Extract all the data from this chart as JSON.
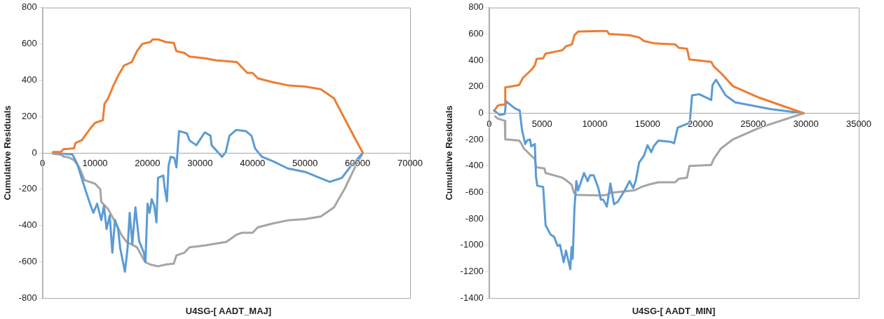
{
  "chart_data": [
    {
      "type": "line",
      "xlabel": "U4SG-[ AADT_MAJ]",
      "ylabel": "Cumulative Residuals",
      "xlim": [
        0,
        70000
      ],
      "ylim": [
        -800,
        800
      ],
      "xticks": [
        0,
        10000,
        20000,
        30000,
        40000,
        50000,
        60000,
        70000
      ],
      "yticks": [
        -800,
        -600,
        -400,
        -200,
        0,
        200,
        400,
        600,
        800
      ],
      "grid": false,
      "marker": "none",
      "series": [
        {
          "color": "#ed7d31",
          "x": [
            2000,
            3500,
            4000,
            5000,
            6000,
            6300,
            7500,
            9000,
            10000,
            11500,
            11800,
            12500,
            13500,
            14500,
            15500,
            17000,
            18000,
            19000,
            20500,
            21000,
            22000,
            23500,
            25000,
            25500,
            27000,
            28000,
            31000,
            33000,
            37000,
            38000,
            39000,
            40000,
            41000,
            44000,
            46700,
            50000,
            53000,
            55500,
            57500,
            59500,
            61000
          ],
          "values": [
            5,
            5,
            20,
            22,
            25,
            55,
            70,
            130,
            165,
            180,
            270,
            300,
            370,
            430,
            480,
            500,
            560,
            600,
            610,
            625,
            625,
            610,
            605,
            560,
            550,
            530,
            520,
            510,
            500,
            470,
            440,
            440,
            410,
            388,
            372,
            365,
            350,
            300,
            190,
            80,
            0
          ]
        },
        {
          "color": "#5b9bd5",
          "x": [
            2000,
            5700,
            6600,
            8300,
            9200,
            9700,
            10400,
            11200,
            11700,
            12200,
            12800,
            13300,
            13800,
            14400,
            14800,
            15700,
            16200,
            16600,
            17100,
            17700,
            18400,
            19300,
            19600,
            20000,
            20400,
            20800,
            21300,
            21700,
            22000,
            23000,
            23300,
            23700,
            24000,
            24400,
            25100,
            25500,
            26000,
            27500,
            28000,
            29300,
            30900,
            32000,
            32200,
            34200,
            34900,
            35600,
            36900,
            38700,
            39800,
            40500,
            41800,
            44000,
            46700,
            50000,
            54700,
            57000,
            58700,
            61000
          ],
          "values": [
            0,
            -9,
            -60,
            -215,
            -293,
            -330,
            -280,
            -370,
            -293,
            -420,
            -345,
            -550,
            -370,
            -420,
            -525,
            -655,
            -525,
            -330,
            -500,
            -300,
            -486,
            -550,
            -600,
            -280,
            -330,
            -255,
            -293,
            -383,
            -138,
            -125,
            -200,
            -267,
            -73,
            -22,
            -28,
            -80,
            120,
            107,
            68,
            42,
            113,
            94,
            42,
            -22,
            4,
            94,
            126,
            120,
            94,
            23,
            -22,
            -48,
            -86,
            -105,
            -160,
            -138,
            -74,
            0
          ]
        },
        {
          "color": "#a5a5a5",
          "x": [
            2000,
            3500,
            4000,
            5000,
            6000,
            7000,
            8000,
            10000,
            11000,
            11200,
            12500,
            14000,
            15000,
            16000,
            18000,
            19500,
            20500,
            22000,
            23500,
            25000,
            25500,
            27000,
            28000,
            31000,
            33000,
            35000,
            37000,
            38000,
            40000,
            41000,
            44000,
            46700,
            50000,
            53000,
            55500,
            57500,
            59500,
            61000
          ],
          "values": [
            -5,
            -10,
            -20,
            -25,
            -40,
            -80,
            -150,
            -170,
            -200,
            -270,
            -310,
            -390,
            -450,
            -490,
            -520,
            -600,
            -615,
            -625,
            -615,
            -610,
            -565,
            -550,
            -520,
            -510,
            -500,
            -490,
            -450,
            -440,
            -440,
            -410,
            -388,
            -372,
            -365,
            -350,
            -300,
            -200,
            -80,
            0
          ]
        }
      ]
    },
    {
      "type": "line",
      "xlabel": "U4SG-[ AADT_MIN]",
      "ylabel": "Cumulative Residuals",
      "xlim": [
        0,
        35000
      ],
      "ylim": [
        -1400,
        800
      ],
      "xticks": [
        0,
        5000,
        10000,
        15000,
        20000,
        25000,
        30000,
        35000
      ],
      "yticks": [
        -1400,
        -1200,
        -1000,
        -800,
        -600,
        -400,
        -200,
        0,
        200,
        400,
        600,
        800
      ],
      "grid": false,
      "marker": "none",
      "series": [
        {
          "color": "#ed7d31",
          "x": [
            570,
            800,
            1140,
            1480,
            1520,
            1930,
            2840,
            3180,
            3410,
            3980,
            4320,
            4500,
            5110,
            5340,
            6930,
            7270,
            7840,
            8070,
            8410,
            10570,
            11140,
            11360,
            13300,
            14200,
            14660,
            15570,
            16480,
            17620,
            17960,
            18730,
            18960,
            21030,
            21260,
            22000,
            23080,
            25570,
            29780
          ],
          "values": [
            30,
            56,
            65,
            65,
            196,
            200,
            214,
            267,
            284,
            328,
            363,
            412,
            416,
            451,
            477,
            507,
            521,
            591,
            618,
            623,
            623,
            600,
            591,
            574,
            547,
            530,
            526,
            521,
            495,
            489,
            407,
            389,
            355,
            300,
            205,
            118,
            0
          ]
        },
        {
          "color": "#5b9bd5",
          "x": [
            450,
            1020,
            1480,
            1590,
            2390,
            2610,
            2890,
            3110,
            3410,
            3590,
            3860,
            3980,
            4320,
            4430,
            4550,
            5110,
            5340,
            5800,
            6140,
            6480,
            6700,
            7050,
            7270,
            7680,
            7800,
            7910,
            8070,
            8250,
            8410,
            8640,
            8980,
            9320,
            9550,
            9890,
            10340,
            10570,
            10800,
            11140,
            11480,
            11820,
            12160,
            12840,
            13300,
            13640,
            13870,
            14200,
            14660,
            15000,
            15340,
            15570,
            16020,
            17160,
            17510,
            17850,
            18900,
            18990,
            19210,
            19890,
            21030,
            21150,
            21480,
            22390,
            23300,
            26710,
            29780
          ],
          "values": [
            21,
            -14,
            -5,
            91,
            39,
            30,
            21,
            -128,
            -233,
            -207,
            -198,
            -251,
            -233,
            -479,
            -549,
            -558,
            -847,
            -918,
            -935,
            -1005,
            -996,
            -1128,
            -1040,
            -1181,
            -1014,
            -1102,
            -725,
            -514,
            -584,
            -532,
            -453,
            -514,
            -470,
            -470,
            -567,
            -654,
            -654,
            -707,
            -532,
            -689,
            -672,
            -584,
            -514,
            -567,
            -514,
            -374,
            -321,
            -242,
            -295,
            -251,
            -207,
            -216,
            -228,
            -110,
            -75,
            -75,
            135,
            144,
            100,
            214,
            253,
            135,
            82,
            30,
            0
          ]
        },
        {
          "color": "#a5a5a5",
          "x": [
            570,
            800,
            1480,
            1520,
            2840,
            3070,
            3300,
            3980,
            4320,
            4430,
            5230,
            5340,
            6930,
            7390,
            7800,
            8020,
            8300,
            10570,
            11140,
            11480,
            13750,
            14430,
            15110,
            16020,
            17620,
            17960,
            18730,
            18960,
            21030,
            21260,
            21940,
            23080,
            25570,
            29780
          ],
          "values": [
            -23,
            -40,
            -58,
            -198,
            -207,
            -233,
            -268,
            -321,
            -347,
            -409,
            -418,
            -453,
            -488,
            -514,
            -540,
            -602,
            -619,
            -623,
            -619,
            -602,
            -584,
            -558,
            -540,
            -523,
            -523,
            -496,
            -488,
            -400,
            -391,
            -347,
            -268,
            -198,
            -111,
            0
          ]
        }
      ]
    }
  ]
}
